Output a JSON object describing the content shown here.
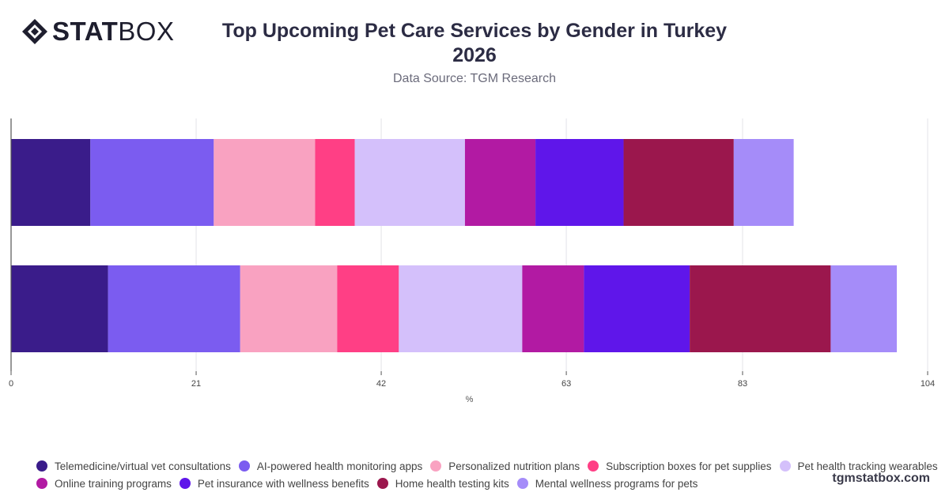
{
  "brand": {
    "logo_bold": "STAT",
    "logo_light": "BOX",
    "watermark": "tgmstatbox.com"
  },
  "header": {
    "title_line1": "Top Upcoming Pet Care Services by Gender in Turkey",
    "title_line2": "2026",
    "subtitle": "Data Source: TGM Research"
  },
  "chart_data": {
    "type": "bar",
    "orientation": "horizontal",
    "stacked": true,
    "title": "Top Upcoming Pet Care Services by Gender in Turkey 2026",
    "subtitle": "Data Source: TGM Research",
    "xlabel": "%",
    "ylabel": "",
    "xlim": [
      0,
      104
    ],
    "x_ticks": [
      "0",
      "21",
      "42",
      "63",
      "83",
      "104"
    ],
    "grid": true,
    "legend_position": "bottom",
    "categories": [
      "",
      ""
    ],
    "series": [
      {
        "name": "Telemedicine/virtual vet consultations",
        "color": "#3a1c8a",
        "values": [
          9,
          11
        ]
      },
      {
        "name": "AI-powered health monitoring apps",
        "color": "#7b5cf0",
        "values": [
          14,
          15
        ]
      },
      {
        "name": "Personalized nutrition plans",
        "color": "#f9a2c1",
        "values": [
          11.5,
          11
        ]
      },
      {
        "name": "Subscription boxes for pet supplies",
        "color": "#ff3f85",
        "values": [
          4.5,
          7
        ]
      },
      {
        "name": "Pet health tracking wearables",
        "color": "#d4c0fb",
        "values": [
          12.5,
          14
        ]
      },
      {
        "name": "Online training programs",
        "color": "#b21aa3",
        "values": [
          8,
          7
        ]
      },
      {
        "name": "Pet insurance with wellness benefits",
        "color": "#5f16ea",
        "values": [
          10,
          12
        ]
      },
      {
        "name": "Home health testing kits",
        "color": "#9b174d",
        "values": [
          12.5,
          16
        ]
      },
      {
        "name": "Mental wellness programs for pets",
        "color": "#a58cf9",
        "values": [
          6.8,
          7.5
        ]
      }
    ]
  }
}
